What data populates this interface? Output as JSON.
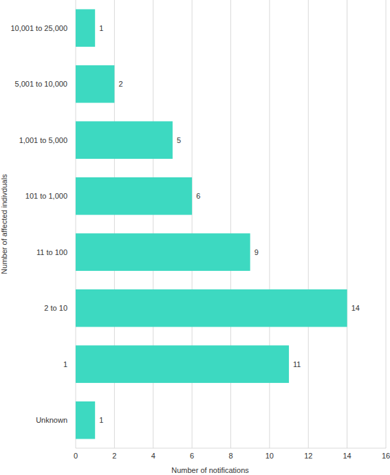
{
  "chart_data": {
    "type": "bar",
    "orientation": "horizontal",
    "categories": [
      "10,001 to 25,000",
      "5,001 to 10,000",
      "1,001 to 5,000",
      "101 to 1,000",
      "11 to 100",
      "2 to 10",
      "1",
      "Unknown"
    ],
    "values": [
      1,
      2,
      5,
      6,
      9,
      14,
      11,
      1
    ],
    "color": "#3dd9c1",
    "x_label": "Number of notifications",
    "y_label": "Number of affected indivduals",
    "xlim": [
      0,
      16
    ],
    "xticks": [
      0,
      2,
      4,
      6,
      8,
      10,
      12,
      14,
      16
    ],
    "grid": true,
    "data_labels": true
  }
}
